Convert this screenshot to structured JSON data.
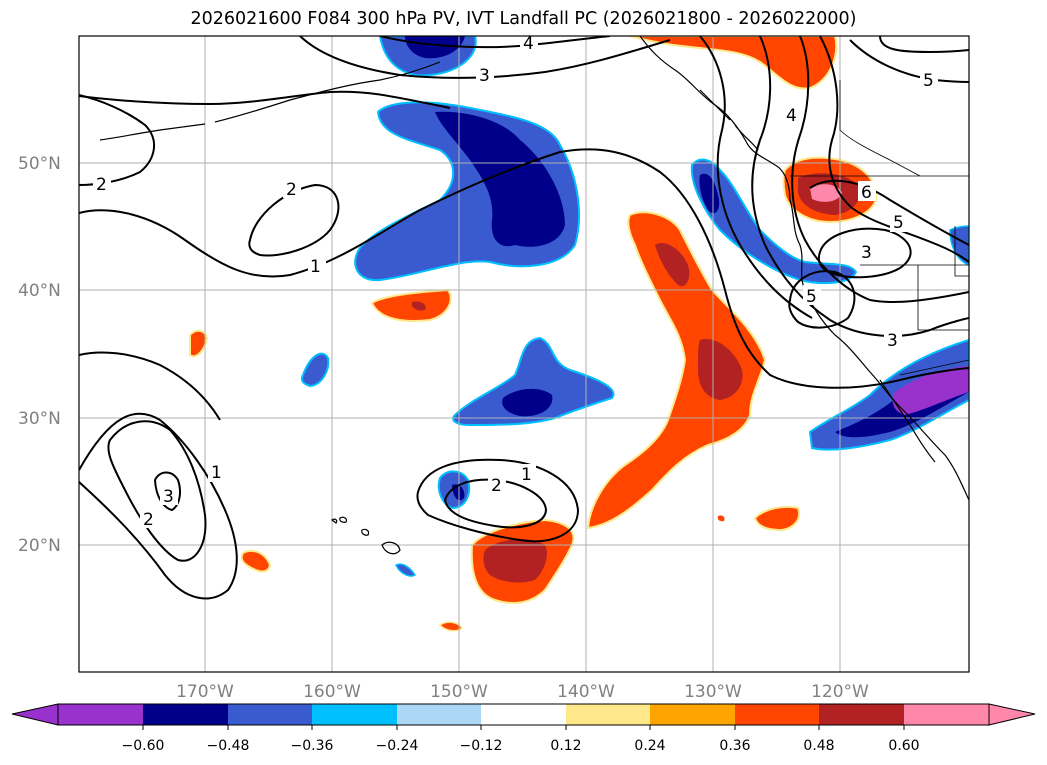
{
  "title": "2026021600 F084 300 hPa PV, IVT Landfall PC (2026021800 - 2026022000)",
  "lat_labels": [
    "50°N",
    "40°N",
    "30°N",
    "20°N"
  ],
  "lon_labels": [
    "170°W",
    "160°W",
    "150°W",
    "140°W",
    "130°W",
    "120°W"
  ],
  "contour_labels": [
    "2",
    "2",
    "1",
    "4",
    "3",
    "5",
    "4",
    "6",
    "5",
    "3",
    "5",
    "3",
    "1",
    "2",
    "1",
    "2",
    "3"
  ],
  "colorbar": {
    "ticks": [
      "−0.60",
      "−0.48",
      "−0.36",
      "−0.24",
      "−0.12",
      "0.12",
      "0.24",
      "0.36",
      "0.48",
      "0.60"
    ],
    "colors": [
      "#9932cc",
      "#00008b",
      "#3a5bcf",
      "#00bfff",
      "#add8f5",
      "#ffffff",
      "#ffe88a",
      "#ffa500",
      "#ff4500",
      "#b22222",
      "#ff88aa"
    ]
  },
  "colors": {
    "neg_strong": "#00008b",
    "neg_mid": "#3a5bcf",
    "neg_edge": "#00bfff",
    "neg_extreme": "#9932cc",
    "pos_mid": "#ff4500",
    "pos_strong": "#b22222",
    "pos_extreme": "#ff88aa",
    "pos_edge": "#ffe88a"
  }
}
